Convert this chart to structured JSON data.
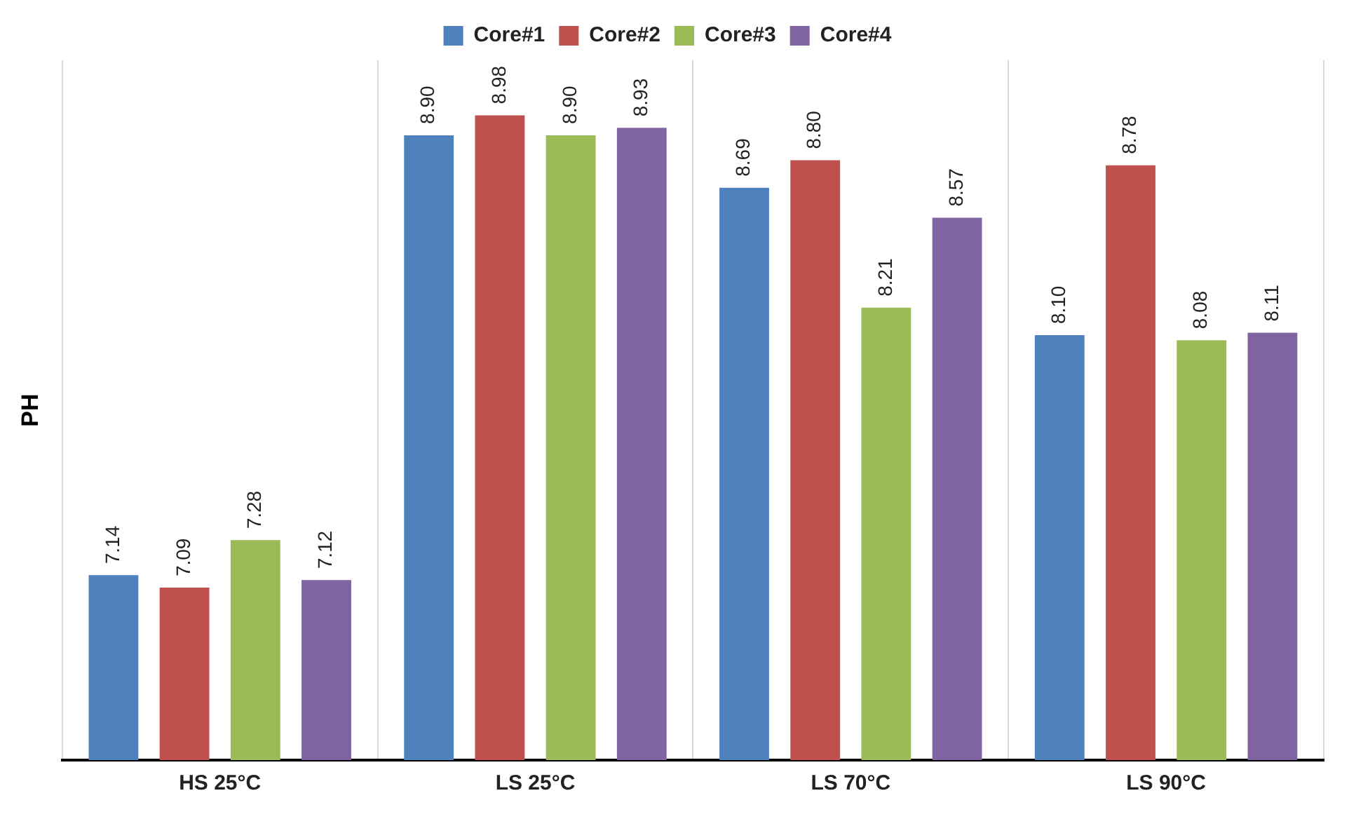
{
  "chart_data": {
    "type": "bar",
    "ylabel": "PH",
    "categories": [
      "HS 25°C",
      "LS 25°C",
      "LS 70°C",
      "LS 90°C"
    ],
    "series": [
      {
        "name": "Core#1",
        "color": "#4f81bd",
        "values": [
          7.14,
          8.9,
          8.69,
          8.1
        ],
        "value_labels": [
          "7.14",
          "8.90",
          "8.69",
          "8.10"
        ]
      },
      {
        "name": "Core#2",
        "color": "#c0504d",
        "values": [
          7.09,
          8.98,
          8.8,
          8.78
        ],
        "value_labels": [
          "7.09",
          "8.98",
          "8.80",
          "8.78"
        ]
      },
      {
        "name": "Core#3",
        "color": "#9bbb59",
        "values": [
          7.28,
          8.9,
          8.21,
          8.08
        ],
        "value_labels": [
          "7.28",
          "8.90",
          "8.21",
          "8.08"
        ]
      },
      {
        "name": "Core#4",
        "color": "#8064a2",
        "values": [
          7.12,
          8.93,
          8.57,
          8.11
        ],
        "value_labels": [
          "7.12",
          "8.93",
          "8.57",
          "8.11"
        ]
      }
    ],
    "ylim": [
      6.4,
      9.2
    ],
    "tick_labels": "x",
    "grid": "x",
    "legend": "top"
  }
}
